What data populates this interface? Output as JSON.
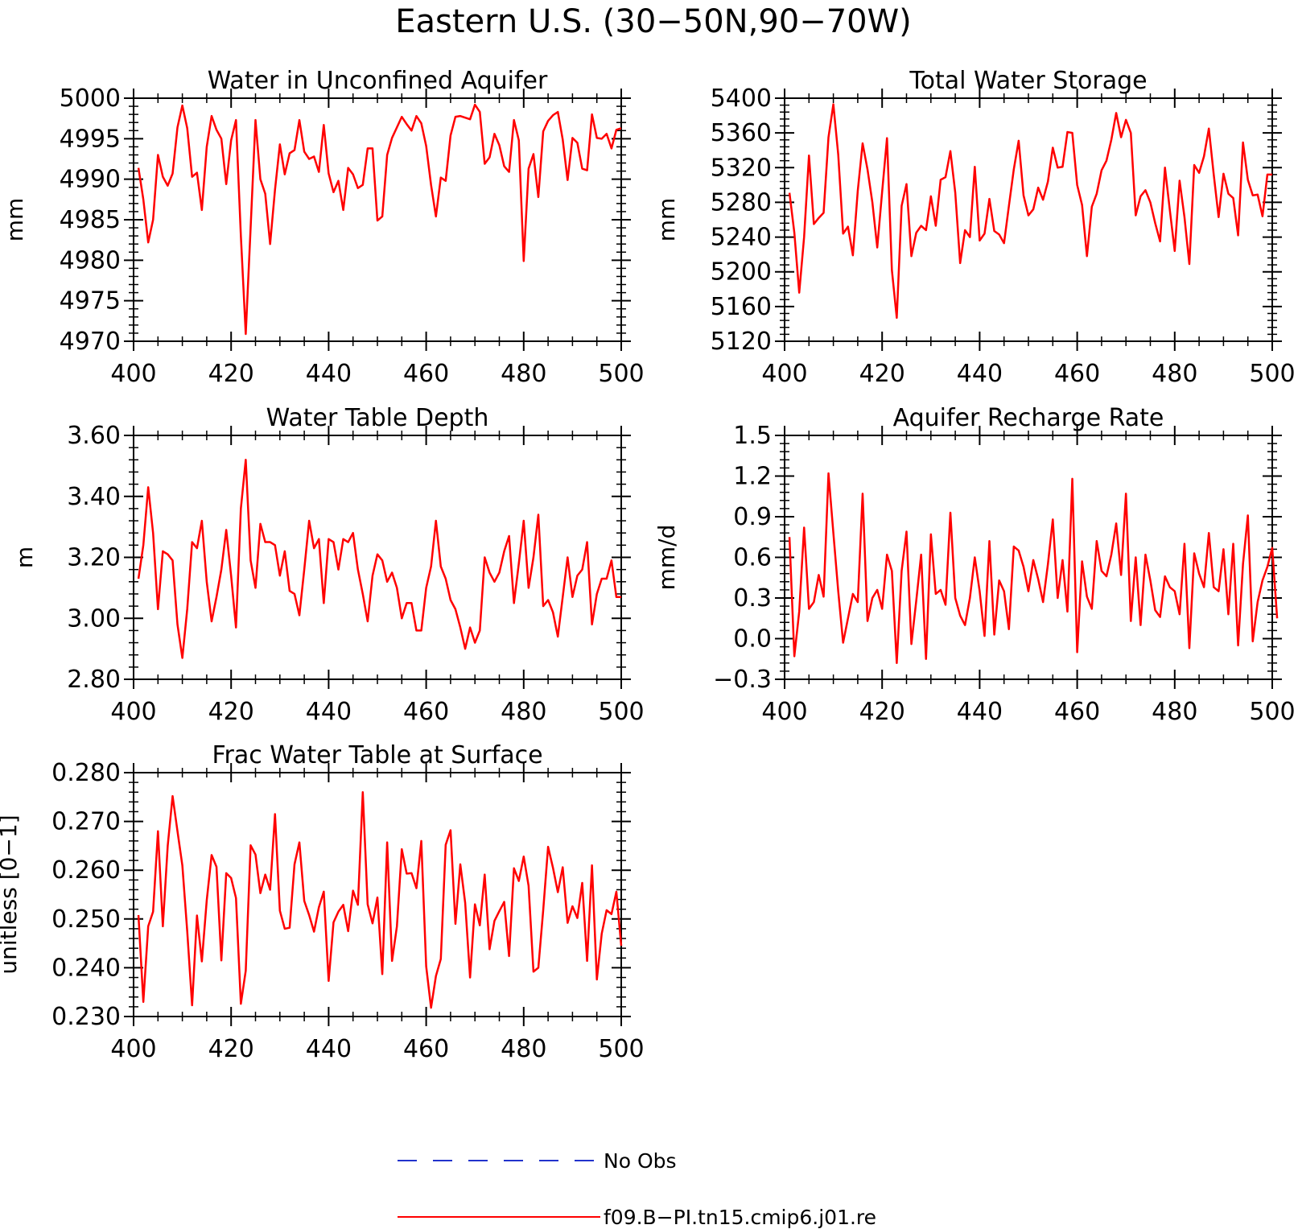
{
  "figure": {
    "title": "Eastern U.S. (30−50N,90−70W)"
  },
  "legend": {
    "entries": [
      {
        "label": "No Obs",
        "color": "#2233cc",
        "style": "dashed"
      },
      {
        "label": "f09.B−PI.tn15.cmip6.j01.re",
        "color": "#ff0000",
        "style": "solid"
      }
    ]
  },
  "chart_data": [
    {
      "type": "line",
      "title": "Water in Unconfined Aquifer",
      "xlabel": "",
      "ylabel": "mm",
      "xlim": [
        400,
        500
      ],
      "ylim": [
        4970,
        5000
      ],
      "xticks": [
        "400",
        "420",
        "440",
        "460",
        "480",
        "500"
      ],
      "yticks": [
        "4970",
        "4975",
        "4980",
        "4985",
        "4990",
        "4995",
        "5000"
      ],
      "series": [
        {
          "name": "f09.B−PI.tn15.cmip6.j01.re",
          "color": "#ff0000",
          "x_start": 401,
          "x_step": 1,
          "values": [
            4991.4,
            4987.5,
            4982.2,
            4985.0,
            4993.0,
            4990.3,
            4989.2,
            4990.7,
            4996.4,
            4999.1,
            4996.3,
            4990.3,
            4990.8,
            4986.2,
            4994.0,
            4997.8,
            4996.1,
            4995.0,
            4989.4,
            4994.8,
            4997.3,
            4983.0,
            4970.9,
            4984.0,
            4997.3,
            4990.0,
            4988.2,
            4982.0,
            4988.7,
            4994.3,
            4990.6,
            4993.2,
            4993.6,
            4997.3,
            4993.4,
            4992.5,
            4992.8,
            4990.9,
            4996.7,
            4990.7,
            4988.4,
            4989.8,
            4986.2,
            4991.4,
            4990.6,
            4988.9,
            4989.3,
            4993.8,
            4993.8,
            4984.9,
            4985.4,
            4993.0,
            4995.1,
            4996.4,
            4997.7,
            4996.8,
            4996.0,
            4997.8,
            4996.9,
            4994.1,
            4989.3,
            4985.4,
            4990.2,
            4989.8,
            4995.4,
            4997.7,
            4997.8,
            4997.6,
            4997.4,
            4999.2,
            4998.3,
            4991.9,
            4992.7,
            4995.6,
            4994.2,
            4991.6,
            4990.9,
            4997.3,
            4994.8,
            4979.9,
            4991.3,
            4993.1,
            4987.8,
            4995.9,
            4997.2,
            4997.9,
            4998.3,
            4994.9,
            4989.9,
            4995.1,
            4994.5,
            4991.3,
            4991.1,
            4998.0,
            4995.1,
            4995.0,
            4995.6,
            4993.8,
            4996.1,
            4996.3
          ]
        }
      ]
    },
    {
      "type": "line",
      "title": "Total Water Storage",
      "xlabel": "",
      "ylabel": "mm",
      "xlim": [
        400,
        500
      ],
      "ylim": [
        5120,
        5400
      ],
      "xticks": [
        "400",
        "420",
        "440",
        "460",
        "480",
        "500"
      ],
      "yticks": [
        "5120",
        "5160",
        "5200",
        "5240",
        "5280",
        "5320",
        "5360",
        "5400"
      ],
      "series": [
        {
          "name": "f09.B−PI.tn15.cmip6.j01.re",
          "color": "#ff0000",
          "x_start": 401,
          "x_step": 1,
          "values": [
            5291,
            5245,
            5176,
            5240,
            5334,
            5255,
            5262,
            5268,
            5355,
            5393,
            5335,
            5244,
            5252,
            5219,
            5293,
            5348,
            5318,
            5280,
            5228,
            5292,
            5354,
            5202,
            5147,
            5276,
            5301,
            5218,
            5245,
            5253,
            5248,
            5287,
            5253,
            5306,
            5309,
            5339,
            5291,
            5210,
            5248,
            5240,
            5321,
            5236,
            5244,
            5284,
            5247,
            5243,
            5233,
            5276,
            5318,
            5351,
            5288,
            5265,
            5272,
            5297,
            5283,
            5304,
            5343,
            5320,
            5321,
            5361,
            5360,
            5300,
            5277,
            5218,
            5275,
            5290,
            5317,
            5328,
            5352,
            5383,
            5355,
            5375,
            5360,
            5265,
            5287,
            5294,
            5280,
            5256,
            5235,
            5320,
            5271,
            5224,
            5305,
            5263,
            5209,
            5323,
            5314,
            5333,
            5365,
            5312,
            5263,
            5313,
            5290,
            5285,
            5242,
            5349,
            5306,
            5288,
            5289,
            5264,
            5312,
            5312
          ]
        }
      ]
    },
    {
      "type": "line",
      "title": "Water Table Depth",
      "xlabel": "",
      "ylabel": "m",
      "xlim": [
        400,
        500
      ],
      "ylim": [
        2.8,
        3.6
      ],
      "xticks": [
        "400",
        "420",
        "440",
        "460",
        "480",
        "500"
      ],
      "yticks": [
        "2.80",
        "3.00",
        "3.20",
        "3.40",
        "3.60"
      ],
      "series": [
        {
          "name": "f09.B−PI.tn15.cmip6.j01.re",
          "color": "#ff0000",
          "x_start": 401,
          "x_step": 1,
          "values": [
            3.13,
            3.24,
            3.43,
            3.28,
            3.03,
            3.22,
            3.21,
            3.19,
            2.98,
            2.87,
            3.03,
            3.25,
            3.23,
            3.32,
            3.12,
            2.99,
            3.07,
            3.16,
            3.29,
            3.14,
            2.97,
            3.36,
            3.52,
            3.19,
            3.1,
            3.31,
            3.25,
            3.25,
            3.24,
            3.14,
            3.22,
            3.09,
            3.08,
            3.01,
            3.16,
            3.32,
            3.23,
            3.26,
            3.05,
            3.26,
            3.25,
            3.16,
            3.26,
            3.25,
            3.28,
            3.16,
            3.08,
            2.99,
            3.14,
            3.21,
            3.19,
            3.12,
            3.15,
            3.1,
            3.0,
            3.05,
            3.05,
            2.96,
            2.96,
            3.1,
            3.17,
            3.32,
            3.17,
            3.13,
            3.06,
            3.03,
            2.97,
            2.9,
            2.97,
            2.92,
            2.96,
            3.2,
            3.15,
            3.12,
            3.15,
            3.22,
            3.27,
            3.05,
            3.18,
            3.32,
            3.1,
            3.2,
            3.34,
            3.04,
            3.06,
            3.02,
            2.94,
            3.07,
            3.2,
            3.07,
            3.14,
            3.16,
            3.25,
            2.98,
            3.08,
            3.13,
            3.13,
            3.19,
            3.07,
            3.07
          ]
        }
      ]
    },
    {
      "type": "line",
      "title": "Aquifer Recharge Rate",
      "xlabel": "",
      "ylabel": "mm/d",
      "xlim": [
        400,
        500
      ],
      "ylim": [
        -0.3,
        1.5
      ],
      "xticks": [
        "400",
        "420",
        "440",
        "460",
        "480",
        "500"
      ],
      "yticks": [
        "−0.3",
        "0.0",
        "0.3",
        "0.6",
        "0.9",
        "1.2",
        "1.5"
      ],
      "series": [
        {
          "name": "f09.B−PI.tn15.cmip6.j01.re",
          "color": "#ff0000",
          "x_start": 401,
          "x_step": 1,
          "values": [
            0.75,
            -0.13,
            0.2,
            0.82,
            0.22,
            0.27,
            0.47,
            0.31,
            1.22,
            0.78,
            0.35,
            -0.03,
            0.15,
            0.33,
            0.27,
            1.07,
            0.13,
            0.3,
            0.36,
            0.22,
            0.62,
            0.5,
            -0.18,
            0.5,
            0.79,
            -0.04,
            0.28,
            0.62,
            -0.15,
            0.77,
            0.33,
            0.36,
            0.25,
            0.93,
            0.3,
            0.17,
            0.1,
            0.3,
            0.6,
            0.35,
            0.02,
            0.72,
            0.03,
            0.43,
            0.35,
            0.07,
            0.68,
            0.65,
            0.53,
            0.35,
            0.58,
            0.44,
            0.27,
            0.55,
            0.88,
            0.3,
            0.58,
            0.2,
            1.18,
            -0.1,
            0.57,
            0.31,
            0.22,
            0.72,
            0.5,
            0.46,
            0.62,
            0.85,
            0.47,
            1.07,
            0.13,
            0.6,
            0.1,
            0.62,
            0.43,
            0.21,
            0.16,
            0.46,
            0.38,
            0.35,
            0.18,
            0.7,
            -0.07,
            0.63,
            0.48,
            0.38,
            0.78,
            0.38,
            0.35,
            0.66,
            0.18,
            0.7,
            -0.05,
            0.55,
            0.91,
            -0.02,
            0.27,
            0.43,
            0.53,
            0.67,
            0.15
          ]
        }
      ]
    },
    {
      "type": "line",
      "title": "Frac Water Table at Surface",
      "xlabel": "",
      "ylabel": "unitless [0−1]",
      "xlim": [
        400,
        500
      ],
      "ylim": [
        0.23,
        0.28
      ],
      "xticks": [
        "400",
        "420",
        "440",
        "460",
        "480",
        "500"
      ],
      "yticks": [
        "0.230",
        "0.240",
        "0.250",
        "0.260",
        "0.270",
        "0.280"
      ],
      "series": [
        {
          "name": "f09.B−PI.tn15.cmip6.j01.re",
          "color": "#ff0000",
          "x_start": 401,
          "x_step": 1,
          "values": [
            0.2508,
            0.233,
            0.2485,
            0.2515,
            0.268,
            0.2485,
            0.265,
            0.2752,
            0.268,
            0.261,
            0.2475,
            0.2323,
            0.2507,
            0.2413,
            0.2538,
            0.2631,
            0.2607,
            0.2415,
            0.2594,
            0.2584,
            0.2543,
            0.2326,
            0.2394,
            0.2651,
            0.2632,
            0.2553,
            0.2591,
            0.256,
            0.2715,
            0.2517,
            0.248,
            0.2482,
            0.2612,
            0.2657,
            0.2537,
            0.2508,
            0.2474,
            0.2524,
            0.2556,
            0.2373,
            0.2493,
            0.2515,
            0.2529,
            0.2475,
            0.2558,
            0.2529,
            0.276,
            0.253,
            0.2491,
            0.2544,
            0.2387,
            0.2657,
            0.2414,
            0.2485,
            0.2643,
            0.2593,
            0.2594,
            0.2563,
            0.266,
            0.2403,
            0.2318,
            0.2383,
            0.2418,
            0.2652,
            0.2682,
            0.249,
            0.2612,
            0.2533,
            0.238,
            0.253,
            0.2487,
            0.2591,
            0.2438,
            0.2496,
            0.2516,
            0.2535,
            0.2424,
            0.2604,
            0.2578,
            0.2628,
            0.2568,
            0.2392,
            0.24,
            0.2518,
            0.2648,
            0.2605,
            0.2555,
            0.2606,
            0.2492,
            0.2526,
            0.2502,
            0.2574,
            0.2414,
            0.261,
            0.2376,
            0.247,
            0.2518,
            0.251,
            0.2556,
            0.2445
          ]
        }
      ]
    }
  ]
}
